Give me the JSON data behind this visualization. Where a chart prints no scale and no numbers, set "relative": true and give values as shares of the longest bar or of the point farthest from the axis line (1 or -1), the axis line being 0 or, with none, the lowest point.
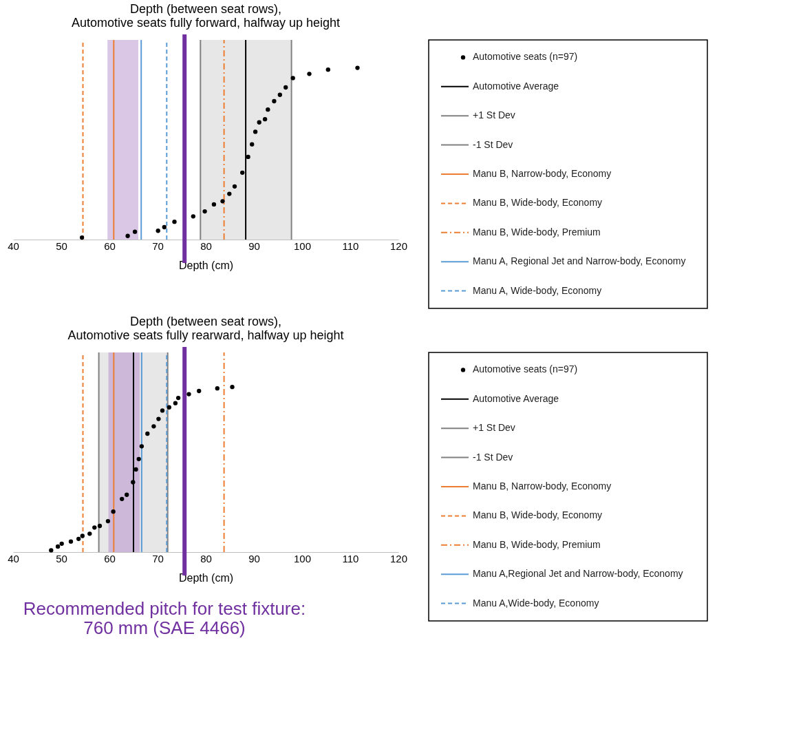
{
  "chart_data": [
    {
      "type": "scatter",
      "title": "Depth (between seat rows),\nAutomotive seats fully forward, halfway up height",
      "xlabel": "Depth (cm)",
      "relative": true,
      "xlim": [
        40,
        120
      ],
      "xticks": [
        40,
        50,
        60,
        70,
        80,
        90,
        100,
        110,
        120
      ],
      "legend": "right",
      "series": [
        {
          "name": "Automotive seats (n=97)",
          "color": "#000000",
          "x": [
            54.3,
            63.8,
            65.3,
            70.1,
            71.4,
            73.5,
            77.4,
            79.8,
            81.7,
            83.5,
            84.9,
            86.0,
            87.6,
            88.8,
            89.6,
            90.3,
            91.1,
            92.3,
            92.9,
            94.2,
            95.4,
            96.6,
            98.1,
            101.5,
            105.4,
            111.5
          ],
          "values": [
            0.01,
            0.018,
            0.039,
            0.044,
            0.062,
            0.089,
            0.116,
            0.141,
            0.176,
            0.192,
            0.229,
            0.266,
            0.335,
            0.414,
            0.477,
            0.54,
            0.587,
            0.603,
            0.651,
            0.693,
            0.725,
            0.762,
            0.809,
            0.83,
            0.851,
            0.86
          ]
        },
        {
          "name": "Automotive Average",
          "type": "line",
          "color": "#000000",
          "line_style": "solid",
          "x": [
            88.3,
            88.3
          ],
          "values": [
            0,
            1
          ]
        },
        {
          "name": "+1 St Dev",
          "type": "line",
          "color": "#808080",
          "line_style": "solid",
          "x": [
            97.8,
            97.8
          ],
          "values": [
            0,
            1
          ]
        },
        {
          "name": "-1 St Dev",
          "type": "line",
          "color": "#808080",
          "line_style": "solid",
          "x": [
            78.9,
            78.9
          ],
          "values": [
            0,
            1
          ]
        },
        {
          "name": "Manu B, Narrow-body, Economy",
          "type": "line",
          "color": "#ed7d31",
          "line_style": "solid",
          "x": [
            60.9,
            60.9
          ],
          "values": [
            0,
            1
          ]
        },
        {
          "name": "Manu B, Wide-body, Economy",
          "type": "line",
          "color": "#ed7d31",
          "line_style": "dashed",
          "x": [
            54.5,
            54.5
          ],
          "values": [
            0,
            1
          ]
        },
        {
          "name": "Manu B, Wide-body, Premium",
          "type": "line",
          "color": "#ed7d31",
          "line_style": "dashdot",
          "x": [
            83.8,
            83.8
          ],
          "values": [
            0,
            1
          ]
        },
        {
          "name": "Manu A, Regional Jet and Narrow-body, Economy",
          "type": "line",
          "color": "#5b9bd5",
          "line_style": "solid",
          "x": [
            66.6,
            66.6
          ],
          "values": [
            0,
            1
          ]
        },
        {
          "name": "Manu A, Wide-body, Economy",
          "type": "line",
          "color": "#5b9bd5",
          "line_style": "dashed",
          "x": [
            71.9,
            71.9
          ],
          "values": [
            0,
            1
          ]
        }
      ],
      "bands": [
        {
          "axis": "x",
          "from": 78.9,
          "to": 97.8,
          "color": "#e7e7e7"
        },
        {
          "axis": "x",
          "from": 59.6,
          "to": 66.0,
          "color": "#d9c7e5"
        }
      ],
      "ref_lines": [
        {
          "axis": "x",
          "value": 75.6,
          "color": "#7030a0"
        }
      ]
    },
    {
      "type": "scatter",
      "title": "Depth (between seat rows),\nAutomotive seats fully rearward, halfway up height",
      "xlabel": "Depth (cm)",
      "relative": true,
      "xlim": [
        40,
        120
      ],
      "xticks": [
        40,
        50,
        60,
        70,
        80,
        90,
        100,
        110,
        120
      ],
      "legend": "right",
      "series": [
        {
          "name": "Automotive seats (n=97)",
          "color": "#000000",
          "x": [
            47.9,
            49.3,
            50.1,
            52.0,
            53.6,
            54.4,
            55.9,
            56.9,
            58.0,
            59.7,
            60.8,
            62.6,
            63.6,
            64.9,
            65.5,
            66.1,
            66.7,
            67.9,
            69.2,
            70.2,
            71.0,
            72.4,
            73.7,
            74.3,
            76.5,
            78.6,
            82.4,
            85.5
          ],
          "values": [
            0.009,
            0.028,
            0.042,
            0.053,
            0.066,
            0.081,
            0.092,
            0.123,
            0.131,
            0.155,
            0.203,
            0.266,
            0.287,
            0.35,
            0.414,
            0.466,
            0.53,
            0.593,
            0.63,
            0.667,
            0.709,
            0.725,
            0.746,
            0.772,
            0.791,
            0.807,
            0.82,
            0.827
          ]
        },
        {
          "name": "Automotive Average",
          "type": "line",
          "color": "#000000",
          "line_style": "solid",
          "x": [
            65.0,
            65.0
          ],
          "values": [
            0,
            1
          ]
        },
        {
          "name": "+1 St Dev",
          "type": "line",
          "color": "#808080",
          "line_style": "solid",
          "x": [
            72.1,
            72.1
          ],
          "values": [
            0,
            1
          ]
        },
        {
          "name": "-1 St Dev",
          "type": "line",
          "color": "#808080",
          "line_style": "solid",
          "x": [
            57.8,
            57.8
          ],
          "values": [
            0,
            1
          ]
        },
        {
          "name": "Manu B, Narrow-body, Economy",
          "type": "line",
          "color": "#ed7d31",
          "line_style": "solid",
          "x": [
            60.9,
            60.9
          ],
          "values": [
            0,
            1
          ]
        },
        {
          "name": "Manu B, Wide-body, Economy",
          "type": "line",
          "color": "#ed7d31",
          "line_style": "dashed",
          "x": [
            54.5,
            54.5
          ],
          "values": [
            0,
            1
          ]
        },
        {
          "name": "Manu B, Wide-body, Premium",
          "type": "line",
          "color": "#ed7d31",
          "line_style": "dashdot",
          "x": [
            83.8,
            83.8
          ],
          "values": [
            0,
            1
          ]
        },
        {
          "name": "Manu A,Regional Jet and Narrow-body, Economy",
          "type": "line",
          "color": "#5b9bd5",
          "line_style": "solid",
          "x": [
            66.7,
            66.7
          ],
          "values": [
            0,
            1
          ]
        },
        {
          "name": "Manu A,Wide-body, Economy",
          "type": "line",
          "color": "#5b9bd5",
          "line_style": "dashed",
          "x": [
            71.9,
            71.9
          ],
          "values": [
            0,
            1
          ]
        }
      ],
      "bands": [
        {
          "axis": "x",
          "from": 57.8,
          "to": 72.1,
          "color": "#e7e7e7"
        },
        {
          "axis": "x",
          "from": 59.8,
          "to": 66.3,
          "color": "#cdb8d9"
        }
      ],
      "ref_lines": [
        {
          "axis": "x",
          "value": 75.6,
          "color": "#7030a0"
        }
      ],
      "annotations": [
        "Recommended pitch for test fixture:\n760 mm (SAE 4466)"
      ]
    }
  ]
}
